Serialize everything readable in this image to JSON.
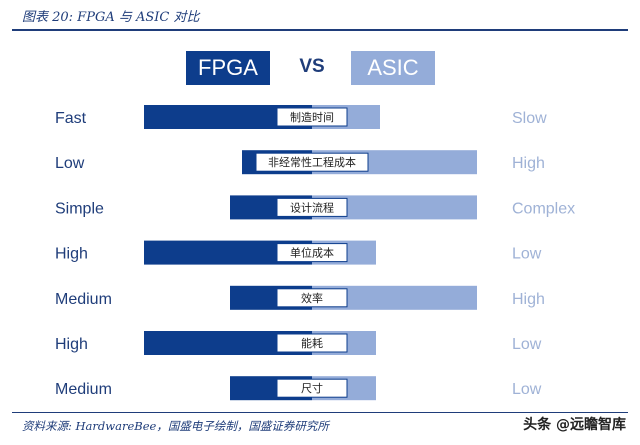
{
  "title": "图表 20:  FPGA 与 ASIC 对比",
  "source": "资料来源:  HardwareBee，国盛电子绘制，国盛证券研究所",
  "watermark": "头条 @远瞻智库",
  "header": {
    "left": "FPGA",
    "vs": "VS",
    "right": "ASIC"
  },
  "colors": {
    "fpga": "#0d3d8c",
    "asic": "#94acd9",
    "label_left": "#1f3d7a",
    "label_right": "#9fb2d6"
  },
  "chart_data": {
    "type": "bar",
    "categories": [
      "制造时间",
      "非经常性工程成本",
      "设计流程",
      "单位成本",
      "效率",
      "能耗",
      "尺寸"
    ],
    "fpga_labels": [
      "Fast",
      "Low",
      "Simple",
      "High",
      "Medium",
      "High",
      "Medium"
    ],
    "asic_labels": [
      "Slow",
      "High",
      "Complex",
      "Low",
      "High",
      "Low",
      "Low"
    ],
    "series": [
      {
        "name": "FPGA",
        "values": [
          168,
          70,
          82,
          168,
          82,
          168,
          82
        ]
      },
      {
        "name": "ASIC",
        "values": [
          68,
          165,
          165,
          64,
          165,
          64,
          64
        ]
      }
    ]
  }
}
